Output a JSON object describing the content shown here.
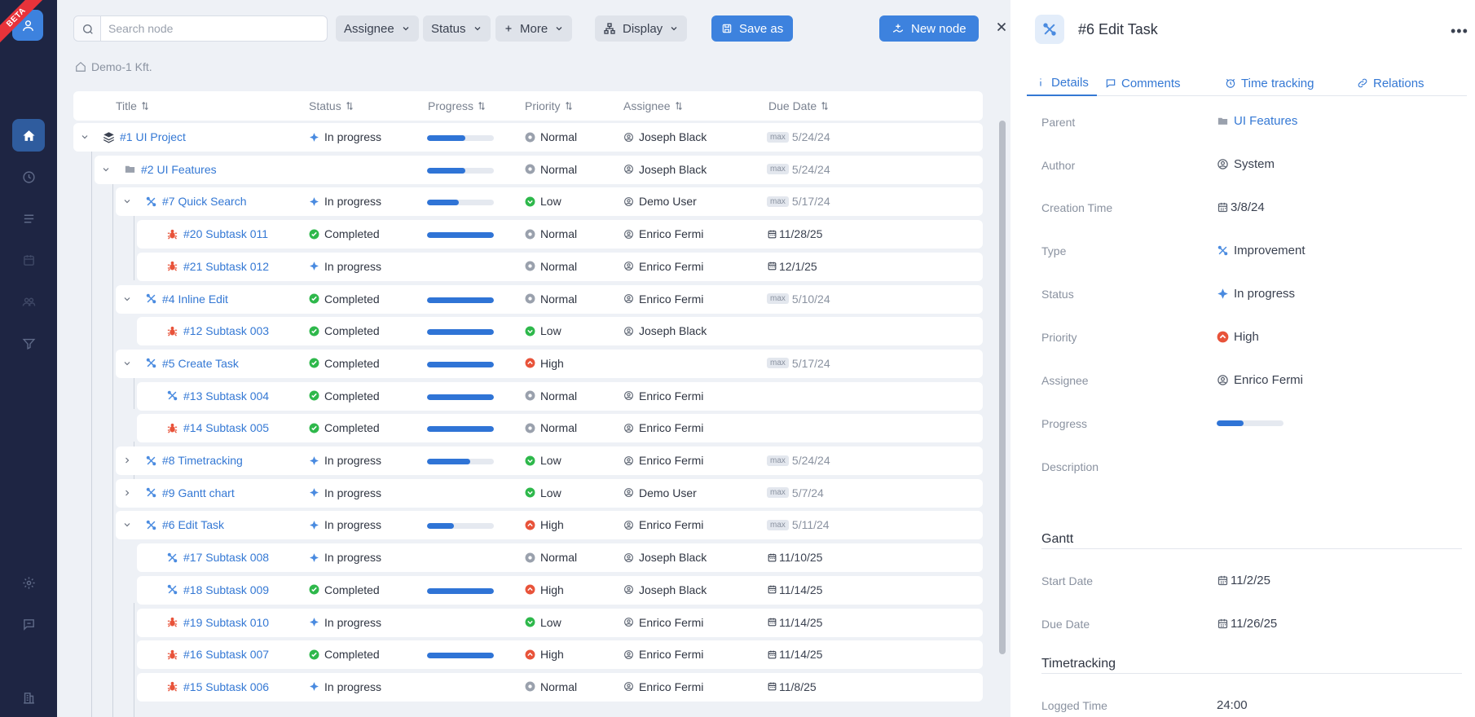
{
  "app": {
    "beta_label": "BETA"
  },
  "toolbar": {
    "search_placeholder": "Search node",
    "assignee_label": "Assignee",
    "status_label": "Status",
    "more_label": "More",
    "display_label": "Display",
    "save_as_label": "Save as",
    "new_node_label": "New node"
  },
  "breadcrumb": {
    "label": "Demo-1 Kft."
  },
  "columns": {
    "title": "Title",
    "status": "Status",
    "progress": "Progress",
    "priority": "Priority",
    "assignee": "Assignee",
    "due_date": "Due Date"
  },
  "rows": [
    {
      "title": "#1 UI Project",
      "type": "project-icon",
      "status": "In progress",
      "progress": 0.57,
      "priority": "Normal",
      "assignee": "Joseph Black",
      "due": "5/24/24",
      "due_kind": "max"
    },
    {
      "title": "#2 UI Features",
      "type": "folder-icon",
      "status": "",
      "progress": 0.57,
      "priority": "Normal",
      "assignee": "Joseph Black",
      "due": "5/24/24",
      "due_kind": "max"
    },
    {
      "title": "#7 Quick Search",
      "type": "improvement-icon",
      "status": "In progress",
      "progress": 0.48,
      "priority": "Low",
      "assignee": "Demo User",
      "due": "5/17/24",
      "due_kind": "max"
    },
    {
      "title": "#20 Subtask 011",
      "type": "bug-icon",
      "status": "Completed",
      "progress": 1,
      "priority": "Normal",
      "assignee": "Enrico Fermi",
      "due": "11/28/25",
      "due_kind": "date"
    },
    {
      "title": "#21 Subtask 012",
      "type": "bug-icon",
      "status": "In progress",
      "progress": null,
      "priority": "Normal",
      "assignee": "Enrico Fermi",
      "due": "12/1/25",
      "due_kind": "date"
    },
    {
      "title": "#4 Inline Edit",
      "type": "improvement-icon",
      "status": "Completed",
      "progress": 1,
      "priority": "Normal",
      "assignee": "Enrico Fermi",
      "due": "5/10/24",
      "due_kind": "max"
    },
    {
      "title": "#12 Subtask 003",
      "type": "bug-icon",
      "status": "Completed",
      "progress": 1,
      "priority": "Low",
      "assignee": "Joseph Black",
      "due": "",
      "due_kind": ""
    },
    {
      "title": "#5 Create Task",
      "type": "improvement-icon",
      "status": "Completed",
      "progress": 1,
      "priority": "High",
      "assignee": "",
      "due": "5/17/24",
      "due_kind": "max"
    },
    {
      "title": "#13 Subtask 004",
      "type": "improvement-icon",
      "status": "Completed",
      "progress": 1,
      "priority": "Normal",
      "assignee": "Enrico Fermi",
      "due": "",
      "due_kind": ""
    },
    {
      "title": "#14 Subtask 005",
      "type": "bug-icon",
      "status": "Completed",
      "progress": 1,
      "priority": "Normal",
      "assignee": "Enrico Fermi",
      "due": "",
      "due_kind": ""
    },
    {
      "title": "#8 Timetracking",
      "type": "improvement-icon",
      "status": "In progress",
      "progress": 0.65,
      "priority": "Low",
      "assignee": "Enrico Fermi",
      "due": "5/24/24",
      "due_kind": "max"
    },
    {
      "title": "#9 Gantt chart",
      "type": "improvement-icon",
      "status": "In progress",
      "progress": null,
      "priority": "Low",
      "assignee": "Demo User",
      "due": "5/7/24",
      "due_kind": "max"
    },
    {
      "title": "#6 Edit Task",
      "type": "improvement-icon",
      "status": "In progress",
      "progress": 0.4,
      "priority": "High",
      "assignee": "Enrico Fermi",
      "due": "5/11/24",
      "due_kind": "max"
    },
    {
      "title": "#17 Subtask 008",
      "type": "improvement-icon",
      "status": "In progress",
      "progress": null,
      "priority": "Normal",
      "assignee": "Joseph Black",
      "due": "11/10/25",
      "due_kind": "date"
    },
    {
      "title": "#18 Subtask 009",
      "type": "improvement-icon",
      "status": "Completed",
      "progress": 1,
      "priority": "High",
      "assignee": "Joseph Black",
      "due": "11/14/25",
      "due_kind": "date"
    },
    {
      "title": "#19 Subtask 010",
      "type": "bug-icon",
      "status": "In progress",
      "progress": null,
      "priority": "Low",
      "assignee": "Enrico Fermi",
      "due": "11/14/25",
      "due_kind": "date"
    },
    {
      "title": "#16 Subtask 007",
      "type": "bug-icon",
      "status": "Completed",
      "progress": 1,
      "priority": "High",
      "assignee": "Enrico Fermi",
      "due": "11/14/25",
      "due_kind": "date"
    },
    {
      "title": "#15 Subtask 006",
      "type": "bug-icon",
      "status": "In progress",
      "progress": null,
      "priority": "Normal",
      "assignee": "Enrico Fermi",
      "due": "11/8/25",
      "due_kind": "date"
    }
  ],
  "panel": {
    "title": "#6 Edit Task",
    "tabs": [
      "Details",
      "Comments",
      "Time tracking",
      "Relations"
    ],
    "fields": {
      "parent_label": "Parent",
      "parent_value": "UI Features",
      "author_label": "Author",
      "author_value": "System",
      "creation_label": "Creation Time",
      "creation_value": "3/8/24",
      "type_label": "Type",
      "type_value": "Improvement",
      "status_label": "Status",
      "status_value": "In progress",
      "priority_label": "Priority",
      "priority_value": "High",
      "assignee_label": "Assignee",
      "assignee_value": "Enrico Fermi",
      "progress_label": "Progress",
      "progress_value": 0.4,
      "description_label": "Description"
    },
    "gantt": {
      "title": "Gantt",
      "start_label": "Start Date",
      "start_value": "11/2/25",
      "due_label": "Due Date",
      "due_value": "11/26/25"
    },
    "timetracking": {
      "title": "Timetracking",
      "logged_label": "Logged Time",
      "logged_value": "24:00"
    }
  },
  "colors": {
    "accent": "#3d82de",
    "rail": "#1e2543",
    "completed": "#2eb84b",
    "in_progress": "#4a8be0",
    "high": "#e8533a",
    "normal": "#9aa1ad",
    "low": "#2eb84b",
    "bug": "#e8533a"
  }
}
